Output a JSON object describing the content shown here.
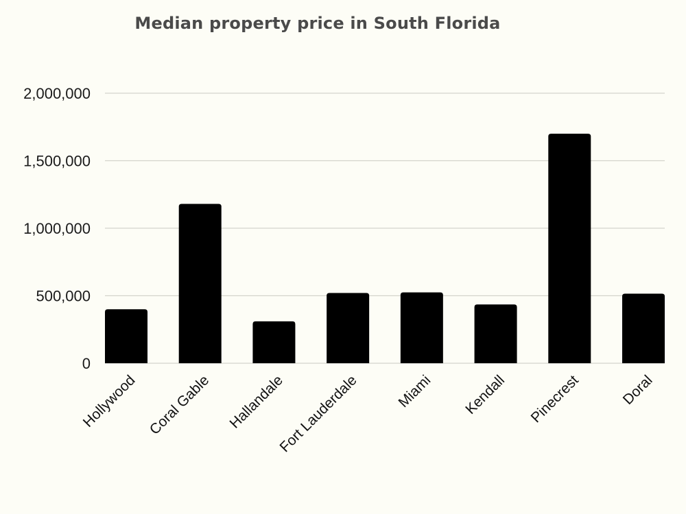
{
  "chart_data": {
    "type": "bar",
    "title": "Median property price in South Florida",
    "xlabel": "",
    "ylabel": "",
    "categories": [
      "Hollywood",
      "Coral Gable",
      "Hallandale",
      "Fort Lauderdale",
      "Miami",
      "Kendall",
      "Pinecrest",
      "Doral"
    ],
    "values": [
      400000,
      1180000,
      310000,
      520000,
      525000,
      435000,
      1700000,
      515000
    ],
    "ylim": [
      0,
      2000000
    ],
    "yticks": [
      0,
      500000,
      1000000,
      1500000,
      2000000
    ],
    "ytick_labels": [
      "0",
      "500,000",
      "1,000,000",
      "1,500,000",
      "2,000,000"
    ],
    "grid": true,
    "legend": "none",
    "bar_color": "#000000",
    "background_color": "#fdfdf6"
  }
}
